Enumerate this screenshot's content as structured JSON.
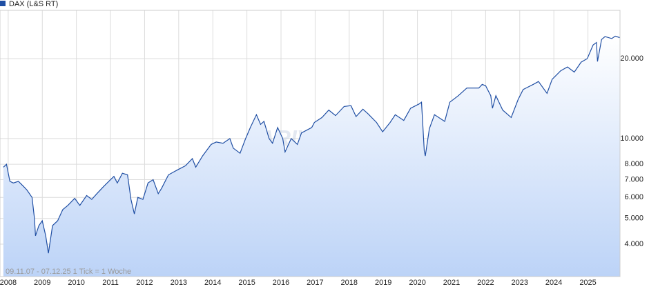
{
  "chart_data": {
    "type": "line",
    "legend": "DAX (L&S RT)",
    "footnote": "09.11.07 - 07.12.25   1 Tick = 1 Woche",
    "watermark": "ARIVA.DE",
    "log_scale": true,
    "grid": true,
    "xlim": [
      2007.76,
      2025.94
    ],
    "xticks": [
      2008,
      2009,
      2010,
      2011,
      2012,
      2013,
      2014,
      2015,
      2016,
      2017,
      2018,
      2019,
      2020,
      2021,
      2022,
      2023,
      2024,
      2025
    ],
    "ylim": [
      3020,
      30400
    ],
    "yticks": [
      {
        "value": 4000,
        "label": "4.000"
      },
      {
        "value": 5000,
        "label": "5.000"
      },
      {
        "value": 6000,
        "label": "6.000"
      },
      {
        "value": 7000,
        "label": "7.000"
      },
      {
        "value": 8000,
        "label": "8.000"
      },
      {
        "value": 10000,
        "label": "10.000"
      },
      {
        "value": 20000,
        "label": "20.000"
      }
    ],
    "series": [
      {
        "name": "DAX (L&S RT)",
        "color": "#1f4ea3",
        "x": [
          2007.86,
          2007.95,
          2008.05,
          2008.15,
          2008.3,
          2008.45,
          2008.55,
          2008.7,
          2008.77,
          2008.8,
          2008.9,
          2009.0,
          2009.1,
          2009.18,
          2009.3,
          2009.45,
          2009.6,
          2009.75,
          2009.95,
          2010.1,
          2010.3,
          2010.45,
          2010.6,
          2010.8,
          2010.95,
          2011.1,
          2011.2,
          2011.35,
          2011.5,
          2011.6,
          2011.7,
          2011.8,
          2011.95,
          2012.1,
          2012.25,
          2012.4,
          2012.5,
          2012.7,
          2012.95,
          2013.2,
          2013.4,
          2013.5,
          2013.7,
          2013.95,
          2014.1,
          2014.3,
          2014.5,
          2014.6,
          2014.8,
          2014.95,
          2015.1,
          2015.28,
          2015.4,
          2015.5,
          2015.65,
          2015.75,
          2015.9,
          2016.05,
          2016.12,
          2016.3,
          2016.48,
          2016.6,
          2016.9,
          2016.98,
          2017.2,
          2017.4,
          2017.6,
          2017.85,
          2018.05,
          2018.2,
          2018.4,
          2018.55,
          2018.8,
          2018.98,
          2019.2,
          2019.35,
          2019.6,
          2019.8,
          2020.05,
          2020.12,
          2020.2,
          2020.23,
          2020.35,
          2020.5,
          2020.8,
          2020.95,
          2021.2,
          2021.45,
          2021.8,
          2021.9,
          2022.0,
          2022.15,
          2022.2,
          2022.3,
          2022.5,
          2022.75,
          2022.95,
          2023.1,
          2023.4,
          2023.55,
          2023.8,
          2023.95,
          2024.2,
          2024.4,
          2024.6,
          2024.8,
          2024.98,
          2025.15,
          2025.25,
          2025.28,
          2025.4,
          2025.5,
          2025.7,
          2025.8,
          2025.93
        ],
        "values": [
          7800,
          8000,
          6900,
          6800,
          6900,
          6600,
          6400,
          6000,
          5000,
          4300,
          4700,
          4900,
          4300,
          3700,
          4700,
          4900,
          5400,
          5600,
          5950,
          5600,
          6100,
          5900,
          6200,
          6600,
          6900,
          7200,
          6800,
          7400,
          7300,
          5900,
          5200,
          6000,
          5900,
          6800,
          7000,
          6200,
          6500,
          7300,
          7600,
          7900,
          8400,
          7800,
          8600,
          9500,
          9700,
          9600,
          10000,
          9200,
          8800,
          9900,
          11000,
          12300,
          11300,
          11600,
          10000,
          9600,
          11000,
          10000,
          8900,
          10000,
          9500,
          10500,
          11000,
          11500,
          12000,
          12800,
          12200,
          13200,
          13300,
          12100,
          12900,
          12400,
          11500,
          10600,
          11500,
          12300,
          11700,
          13000,
          13500,
          13700,
          9000,
          8600,
          10900,
          12300,
          11600,
          13700,
          14500,
          15500,
          15500,
          16000,
          15800,
          14500,
          13000,
          14500,
          12800,
          12000,
          14000,
          15300,
          16000,
          16400,
          14800,
          16700,
          18000,
          18600,
          17800,
          19400,
          20000,
          22500,
          23000,
          19500,
          23600,
          24200,
          23800,
          24300,
          24000
        ]
      }
    ]
  }
}
